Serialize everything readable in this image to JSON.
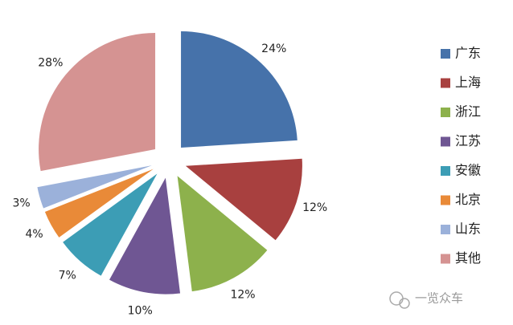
{
  "chart_data": {
    "type": "pie",
    "categories": [
      "广东",
      "上海",
      "浙江",
      "江苏",
      "安徽",
      "北京",
      "山东",
      "其他"
    ],
    "values": [
      24,
      12,
      12,
      10,
      7,
      4,
      3,
      28
    ],
    "value_labels": [
      "24%",
      "12%",
      "12%",
      "10%",
      "7%",
      "4%",
      "3%",
      "28%"
    ],
    "colors": [
      "#4672aa",
      "#a8403f",
      "#8db14c",
      "#6f5693",
      "#3c9db5",
      "#e98a38",
      "#9bb1da",
      "#d59392"
    ],
    "legend": "right",
    "watermark": "一览众车"
  }
}
